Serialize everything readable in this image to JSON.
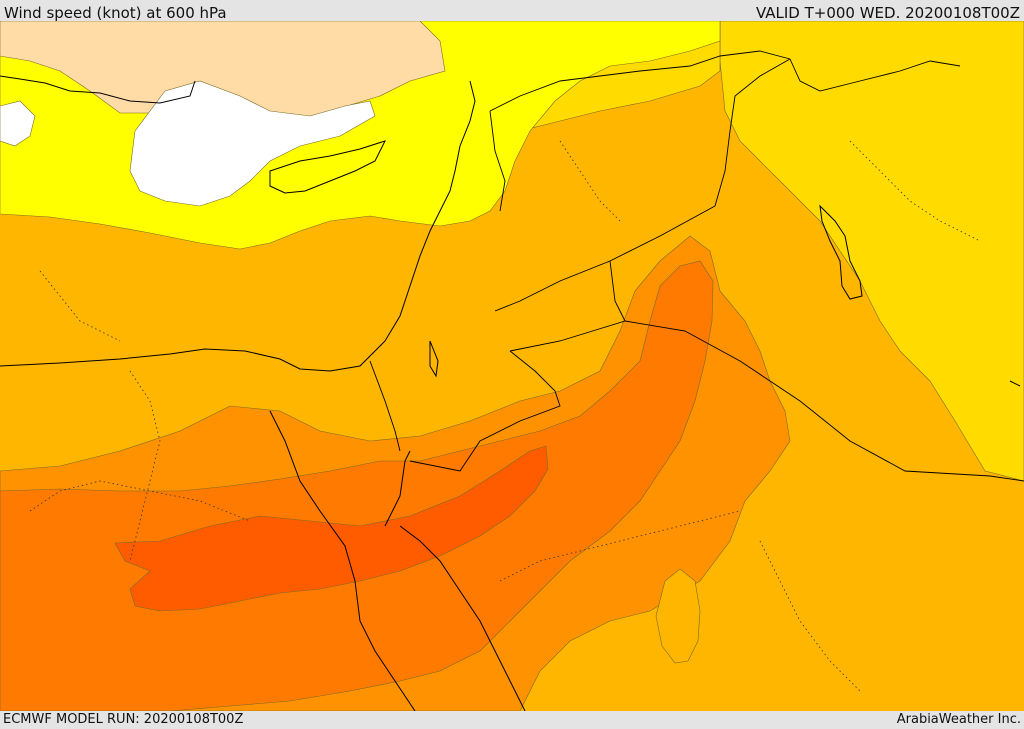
{
  "header": {
    "title": "Wind speed (knot) at 600 hPa",
    "valid": "VALID T+000 WED. 20200108T00Z"
  },
  "footer": {
    "model_run": "ECMWF MODEL RUN: 20200108T00Z",
    "credit": "ArabiaWeather Inc."
  },
  "map": {
    "region": "Eastern Mediterranean and Middle East",
    "colors": {
      "calm": "#ffffff",
      "very_light": "#ffdba6",
      "light": "#ffff00",
      "moderate": "#ffdb00",
      "fresh": "#ffb600",
      "strong": "#ff9200",
      "very_strong": "#ff7a00",
      "max": "#ff5c00",
      "coast": "#000000",
      "border": "#000000"
    }
  }
}
